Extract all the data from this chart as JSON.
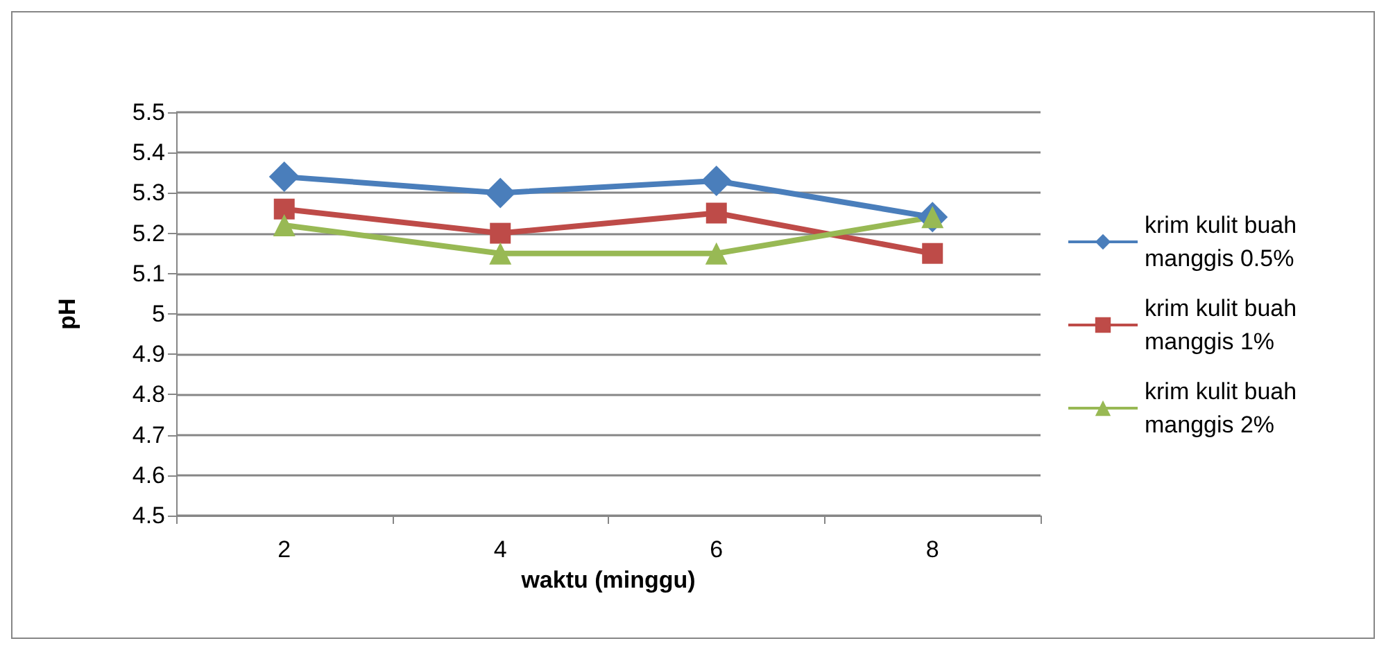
{
  "chart_data": {
    "type": "line",
    "xlabel": "waktu (minggu)",
    "ylabel": "pH",
    "categories": [
      "2",
      "4",
      "6",
      "8"
    ],
    "series": [
      {
        "name": "krim kulit buah manggis 0.5%",
        "color": "#4a7ebb",
        "marker": "diamond",
        "values": [
          5.34,
          5.3,
          5.33,
          5.24
        ]
      },
      {
        "name": "krim kulit buah manggis 1%",
        "color": "#be4b48",
        "marker": "square",
        "values": [
          5.26,
          5.2,
          5.25,
          5.15
        ]
      },
      {
        "name": "krim kulit buah manggis 2%",
        "color": "#98b954",
        "marker": "triangle",
        "values": [
          5.22,
          5.15,
          5.15,
          5.24
        ]
      }
    ],
    "ylim": [
      4.5,
      5.5
    ],
    "yticks": [
      4.5,
      4.6,
      4.7,
      4.8,
      4.9,
      5,
      5.1,
      5.2,
      5.3,
      5.4,
      5.5
    ],
    "grid": "y",
    "legend": "right"
  }
}
